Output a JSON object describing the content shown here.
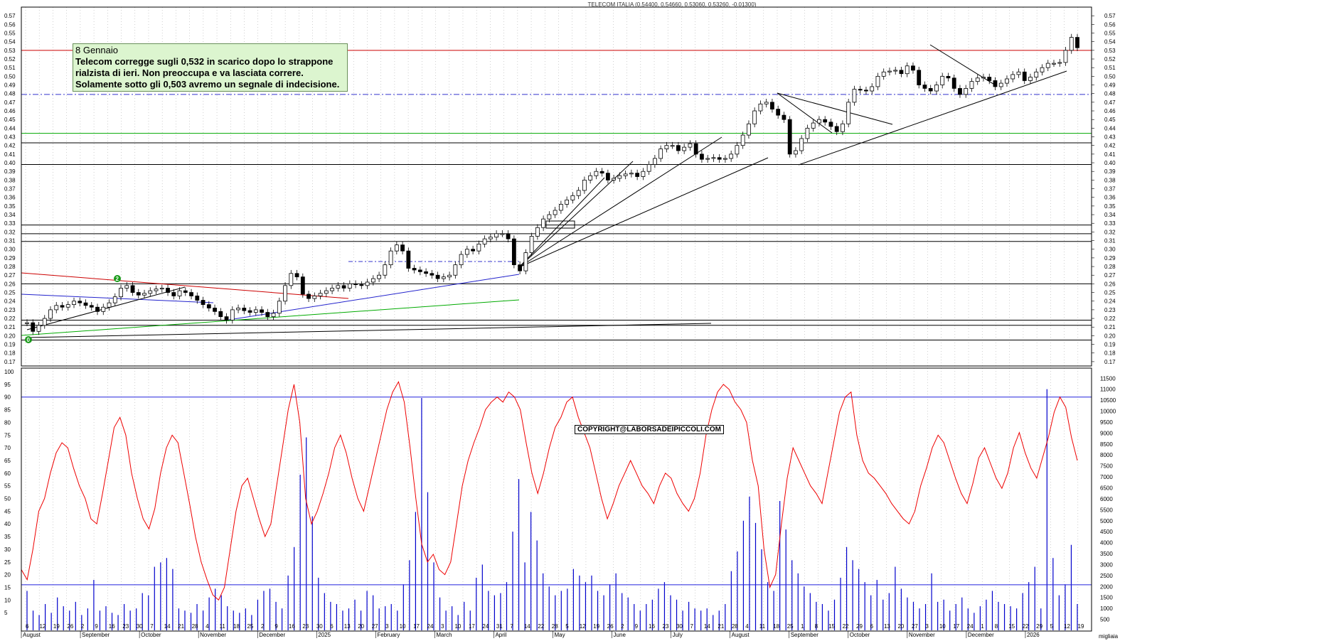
{
  "title_text": "TELECOM ITALIA (0.54400, 0.54660, 0.53060, 0.53260, -0.01300)",
  "annotation": {
    "line1": "8 Gennaio",
    "line2": "Telecom corregge sugli 0,532 in scarico dopo lo strappone",
    "line3": "rialzista di ieri. Non preoccupa e va lasciata correre.",
    "line4": "Solamente sotto gli 0,503 avremo un segnale di indecisione."
  },
  "copyright": "COPYRIGHT@LABORSADEIPICCOLI.COM",
  "colors": {
    "candle": "#000000",
    "resistance_red": "#cc0000",
    "dash_blue": "#3333cc",
    "support_green": "#00aa00",
    "volume_blue": "#0000cc",
    "oscillator_red": "#ee0000",
    "grid": "#b0b0b0"
  },
  "chart_data": [
    {
      "type": "candlestick",
      "title": "TELECOM ITALIA (0.54400, 0.54660, 0.53060, 0.53260, -0.01300)",
      "ylim": [
        0.165,
        0.58
      ],
      "y_ticks": [
        "0.17",
        "0.18",
        "0.19",
        "0.20",
        "0.21",
        "0.22",
        "0.23",
        "0.24",
        "0.25",
        "0.26",
        "0.27",
        "0.28",
        "0.29",
        "0.30",
        "0.31",
        "0.32",
        "0.33",
        "0.34",
        "0.35",
        "0.36",
        "0.37",
        "0.38",
        "0.39",
        "0.40",
        "0.41",
        "0.42",
        "0.43",
        "0.44",
        "0.45",
        "0.46",
        "0.47",
        "0.48",
        "0.49",
        "0.50",
        "0.51",
        "0.52",
        "0.53",
        "0.54",
        "0.55",
        "0.56",
        "0.57"
      ],
      "x_months": [
        "August",
        "September",
        "October",
        "November",
        "December",
        "2025",
        "February",
        "March",
        "April",
        "May",
        "June",
        "July",
        "August",
        "September",
        "October",
        "November",
        "December",
        "2026"
      ],
      "x_days": [
        "6",
        "12",
        "19",
        "26",
        "2",
        "9",
        "16",
        "23",
        "30",
        "7",
        "14",
        "21",
        "28",
        "4",
        "11",
        "18",
        "25",
        "2",
        "9",
        "16",
        "23",
        "30",
        "6",
        "13",
        "20",
        "27",
        "3",
        "10",
        "17",
        "24",
        "3",
        "10",
        "17",
        "24",
        "31",
        "7",
        "14",
        "22",
        "28",
        "5",
        "12",
        "19",
        "26",
        "2",
        "9",
        "16",
        "23",
        "30",
        "7",
        "14",
        "21",
        "28",
        "4",
        "11",
        "18",
        "25",
        "1",
        "8",
        "15",
        "22",
        "29",
        "6",
        "13",
        "20",
        "27",
        "3",
        "10",
        "17",
        "24",
        "1",
        "8",
        "15",
        "22",
        "29",
        "5",
        "12",
        "19"
      ],
      "horizontal_levels": [
        {
          "value": 0.53,
          "color": "#cc0000",
          "style": "solid"
        },
        {
          "value": 0.479,
          "color": "#3333cc",
          "style": "dashdot"
        },
        {
          "value": 0.434,
          "color": "#00aa00",
          "style": "solid"
        },
        {
          "value": 0.423,
          "color": "#000000",
          "style": "solid"
        },
        {
          "value": 0.398,
          "color": "#000000",
          "style": "solid"
        },
        {
          "value": 0.328,
          "color": "#000000",
          "style": "solid"
        },
        {
          "value": 0.318,
          "color": "#000000",
          "style": "solid"
        },
        {
          "value": 0.309,
          "color": "#000000",
          "style": "solid"
        },
        {
          "value": 0.26,
          "color": "#000000",
          "style": "solid"
        },
        {
          "value": 0.218,
          "color": "#000000",
          "style": "solid"
        },
        {
          "value": 0.212,
          "color": "#000000",
          "style": "solid"
        },
        {
          "value": 0.195,
          "color": "#000000",
          "style": "solid"
        }
      ],
      "wave_labels": [
        "2",
        "0"
      ],
      "close_series_approx": [
        0.215,
        0.205,
        0.212,
        0.22,
        0.23,
        0.235,
        0.233,
        0.236,
        0.24,
        0.238,
        0.235,
        0.233,
        0.228,
        0.233,
        0.238,
        0.245,
        0.255,
        0.258,
        0.25,
        0.247,
        0.249,
        0.252,
        0.254,
        0.255,
        0.25,
        0.246,
        0.252,
        0.25,
        0.246,
        0.241,
        0.236,
        0.232,
        0.228,
        0.222,
        0.218,
        0.23,
        0.232,
        0.229,
        0.227,
        0.23,
        0.227,
        0.222,
        0.226,
        0.24,
        0.258,
        0.272,
        0.268,
        0.248,
        0.243,
        0.246,
        0.249,
        0.252,
        0.255,
        0.258,
        0.255,
        0.26,
        0.259,
        0.258,
        0.262,
        0.266,
        0.27,
        0.282,
        0.298,
        0.305,
        0.298,
        0.278,
        0.276,
        0.274,
        0.272,
        0.27,
        0.266,
        0.268,
        0.27,
        0.282,
        0.294,
        0.3,
        0.298,
        0.306,
        0.312,
        0.314,
        0.318,
        0.318,
        0.312,
        0.282,
        0.275,
        0.296,
        0.315,
        0.325,
        0.335,
        0.34,
        0.345,
        0.352,
        0.357,
        0.362,
        0.368,
        0.38,
        0.385,
        0.39,
        0.388,
        0.38,
        0.382,
        0.385,
        0.387,
        0.388,
        0.384,
        0.39,
        0.398,
        0.405,
        0.416,
        0.42,
        0.42,
        0.414,
        0.418,
        0.422,
        0.41,
        0.404,
        0.405,
        0.406,
        0.404,
        0.405,
        0.41,
        0.42,
        0.432,
        0.445,
        0.46,
        0.468,
        0.47,
        0.462,
        0.455,
        0.45,
        0.41,
        0.414,
        0.428,
        0.44,
        0.446,
        0.45,
        0.447,
        0.442,
        0.436,
        0.445,
        0.47,
        0.485,
        0.484,
        0.483,
        0.488,
        0.5,
        0.505,
        0.506,
        0.507,
        0.503,
        0.512,
        0.507,
        0.49,
        0.486,
        0.483,
        0.49,
        0.5,
        0.498,
        0.486,
        0.479,
        0.486,
        0.494,
        0.498,
        0.499,
        0.495,
        0.488,
        0.492,
        0.497,
        0.502,
        0.505,
        0.495,
        0.499,
        0.505,
        0.51,
        0.515,
        0.515,
        0.516,
        0.53,
        0.545,
        0.533
      ]
    },
    {
      "type": "bar+line",
      "y_left_ticks": [
        "5",
        "10",
        "15",
        "20",
        "25",
        "30",
        "35",
        "40",
        "45",
        "50",
        "55",
        "60",
        "65",
        "70",
        "75",
        "80",
        "85",
        "90",
        "95",
        "100"
      ],
      "y_right_ticks": [
        "500",
        "1000",
        "1500",
        "2000",
        "2500",
        "3000",
        "3500",
        "4000",
        "4500",
        "5000",
        "5500",
        "6000",
        "6500",
        "7000",
        "7500",
        "8000",
        "8500",
        "9000",
        "9500",
        "10000",
        "10500",
        "11000",
        "11500"
      ],
      "y_right_label": "migliaia",
      "oscillator_levels": [
        90,
        16
      ],
      "series": [
        {
          "kind": "volume",
          "unit": "thousands",
          "values_approx": [
            1800,
            900,
            700,
            1200,
            800,
            1500,
            1100,
            900,
            1300,
            700,
            1000,
            2300,
            900,
            1100,
            800,
            700,
            1200,
            900,
            1000,
            1700,
            1600,
            2900,
            3100,
            3300,
            2800,
            1000,
            900,
            800,
            1200,
            900,
            1500,
            1900,
            1600,
            1100,
            900,
            800,
            1000,
            700,
            1400,
            1800,
            1900,
            1300,
            1000,
            2500,
            3800,
            7100,
            8800,
            5200,
            2400,
            1700,
            1300,
            1200,
            900,
            1000,
            1400,
            900,
            1800,
            1600,
            1000,
            1100,
            1200,
            900,
            2100,
            3200,
            5400,
            10600,
            6300,
            3100,
            1500,
            900,
            1100,
            700,
            1300,
            900,
            2400,
            3000,
            1800,
            1600,
            1700,
            2200,
            4500,
            6900,
            3100,
            5400,
            4100,
            2600,
            2000,
            1600,
            1800,
            1900,
            2800,
            2500,
            2200,
            2500,
            1800,
            1600,
            2100,
            2600,
            1700,
            1500,
            1200,
            900,
            1200,
            1400,
            1900,
            2200,
            1600,
            1400,
            900,
            1300,
            1000,
            900,
            1000,
            700,
            900,
            1200,
            2700,
            3600,
            5000,
            6100,
            4900,
            3700,
            2200,
            1800,
            5900,
            4600,
            3200,
            2600,
            2000,
            1700,
            1300,
            1200,
            900,
            1400,
            2400,
            3800,
            3200,
            2800,
            2200,
            1600,
            2300,
            1400,
            1700,
            2900,
            1900,
            1500,
            1300,
            1000,
            1200,
            2600,
            1300,
            1400,
            900,
            1200,
            1500,
            1000,
            800,
            1100,
            1400,
            1800,
            1300,
            1200,
            1100,
            1000,
            1700,
            2200,
            2900,
            1000,
            11000,
            3300,
            1600,
            2100,
            3900,
            1200
          ]
        },
        {
          "kind": "oscillator",
          "range": [
            0,
            100
          ],
          "values_approx": [
            22,
            18,
            30,
            45,
            50,
            60,
            68,
            72,
            70,
            62,
            55,
            50,
            42,
            40,
            52,
            65,
            78,
            82,
            75,
            60,
            50,
            42,
            38,
            46,
            60,
            70,
            75,
            72,
            60,
            48,
            35,
            25,
            18,
            12,
            10,
            15,
            30,
            45,
            55,
            58,
            50,
            42,
            35,
            40,
            55,
            70,
            85,
            95,
            80,
            50,
            40,
            45,
            52,
            60,
            70,
            75,
            68,
            58,
            50,
            45,
            55,
            65,
            75,
            85,
            92,
            96,
            88,
            70,
            50,
            32,
            25,
            28,
            22,
            20,
            25,
            40,
            55,
            65,
            72,
            78,
            85,
            88,
            90,
            88,
            92,
            90,
            85,
            72,
            60,
            52,
            60,
            70,
            78,
            82,
            88,
            90,
            82,
            76,
            70,
            60,
            50,
            42,
            48,
            55,
            60,
            65,
            60,
            55,
            52,
            48,
            55,
            60,
            58,
            52,
            48,
            45,
            50,
            60,
            75,
            85,
            92,
            95,
            93,
            88,
            85,
            80,
            65,
            55,
            30,
            15,
            20,
            40,
            58,
            70,
            65,
            60,
            55,
            52,
            48,
            60,
            72,
            84,
            90,
            92,
            75,
            65,
            60,
            58,
            55,
            52,
            48,
            45,
            42,
            40,
            45,
            55,
            62,
            70,
            75,
            72,
            65,
            58,
            52,
            48,
            56,
            66,
            70,
            64,
            58,
            54,
            60,
            70,
            76,
            68,
            62,
            58,
            66,
            74,
            84,
            90,
            86,
            74,
            65
          ]
        }
      ]
    }
  ]
}
